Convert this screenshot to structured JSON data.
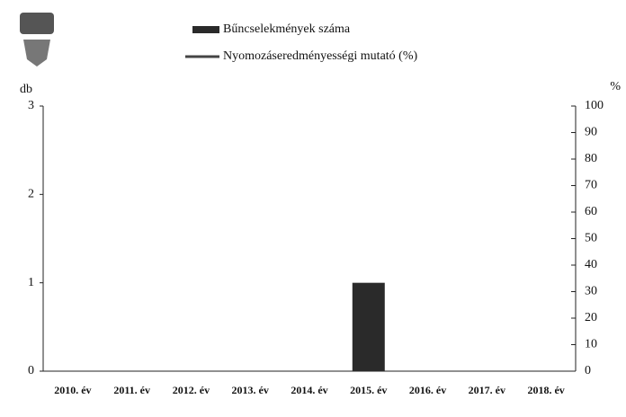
{
  "chart_data": {
    "type": "bar",
    "categories": [
      "2010. év",
      "2011. év",
      "2012. év",
      "2013. év",
      "2014. év",
      "2015. év",
      "2016. év",
      "2017. év",
      "2018. év"
    ],
    "series": [
      {
        "name": "Bűncselekmények száma",
        "color": "#2a2a2a",
        "values": [
          0,
          0,
          0,
          0,
          0,
          1,
          0,
          0,
          0
        ]
      },
      {
        "name": "Nyomozáseredményességi mutató (%)",
        "color": "#444444",
        "axis": "y2",
        "type": "line",
        "values": [
          null,
          null,
          null,
          null,
          null,
          null,
          null,
          null,
          null
        ]
      }
    ],
    "ylabel": "db",
    "ylim": [
      0,
      3
    ],
    "yticks": [
      0,
      1,
      2,
      3
    ],
    "y2label": "%",
    "y2lim": [
      0,
      100
    ],
    "y2ticks": [
      0,
      10,
      20,
      30,
      40,
      50,
      60,
      70,
      80,
      90,
      100
    ],
    "grid": false
  }
}
